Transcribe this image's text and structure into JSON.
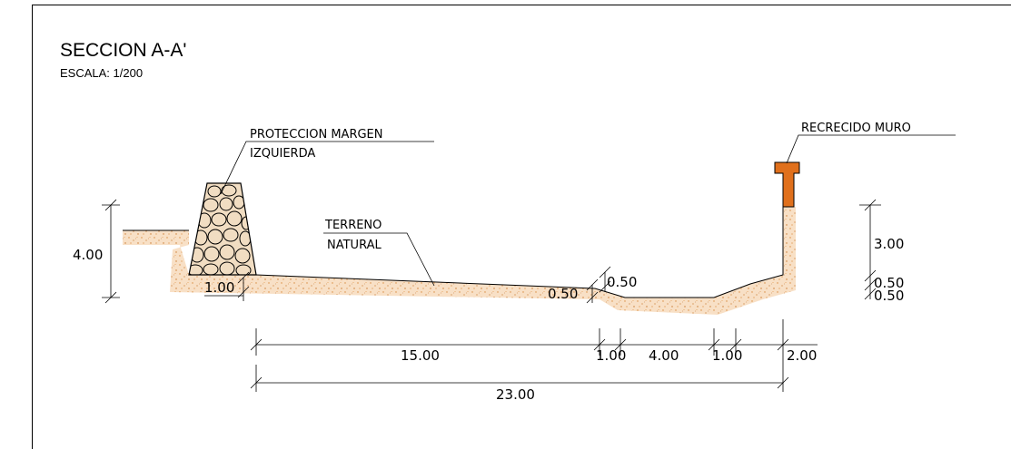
{
  "drawing": {
    "title": "SECCION A-A'",
    "scale": "ESCALA: 1/200"
  },
  "labels": {
    "left_protection_line1": "PROTECCION  MARGEN",
    "left_protection_line2": "IZQUIERDA",
    "wall_raise": "RECRECIDO  MURO",
    "terrain_line1": "TERRENO",
    "terrain_line2": "NATURAL"
  },
  "dimensions": {
    "left_height": "4.00",
    "left_depth": "1.00",
    "step_top": "0.50",
    "step_left": "0.50",
    "right_height": "3.00",
    "right_step1": "0.50",
    "right_step2": "0.50",
    "bottom_15": "15.00",
    "bottom_1a": "1.00",
    "bottom_4": "4.00",
    "bottom_1b": "1.00",
    "bottom_2": "2.00",
    "total": "23.00"
  },
  "colors": {
    "soil_fill": "#f6d3b0",
    "soil_dots": "#d98a3c",
    "wall_raise": "#e0701c",
    "rock_fill": "#f1ddc2"
  }
}
